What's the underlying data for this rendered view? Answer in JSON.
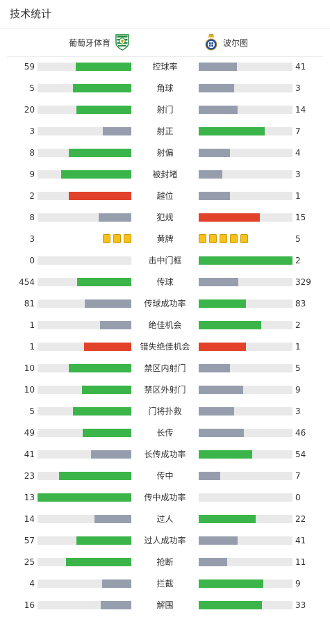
{
  "header": {
    "title": "技术统计"
  },
  "teams": {
    "home": {
      "name": "葡萄牙体育",
      "logo_icon": "sporting-cp-crest-icon"
    },
    "away": {
      "name": "波尔图",
      "logo_icon": "fc-porto-crest-icon"
    }
  },
  "colors": {
    "leader": "#3bb54a",
    "trailer": "#969eae",
    "negative": "#e2412a",
    "track": "#e9e9e9",
    "yellow_card": "#f6c21b"
  },
  "stats": [
    {
      "label": "控球率",
      "home": "59",
      "away": "41",
      "hf": 0.59,
      "af": 0.41,
      "hc": "leader",
      "ac": "trailer"
    },
    {
      "label": "角球",
      "home": "5",
      "away": "3",
      "hf": 0.625,
      "af": 0.375,
      "hc": "leader",
      "ac": "trailer"
    },
    {
      "label": "射门",
      "home": "20",
      "away": "14",
      "hf": 0.588,
      "af": 0.412,
      "hc": "leader",
      "ac": "trailer"
    },
    {
      "label": "射正",
      "home": "3",
      "away": "7",
      "hf": 0.3,
      "af": 0.7,
      "hc": "trailer",
      "ac": "leader"
    },
    {
      "label": "射偏",
      "home": "8",
      "away": "4",
      "hf": 0.667,
      "af": 0.333,
      "hc": "leader",
      "ac": "trailer"
    },
    {
      "label": "被封堵",
      "home": "9",
      "away": "3",
      "hf": 0.75,
      "af": 0.25,
      "hc": "leader",
      "ac": "trailer"
    },
    {
      "label": "越位",
      "home": "2",
      "away": "1",
      "hf": 0.667,
      "af": 0.333,
      "hc": "negative",
      "ac": "trailer"
    },
    {
      "label": "犯规",
      "home": "8",
      "away": "15",
      "hf": 0.348,
      "af": 0.652,
      "hc": "trailer",
      "ac": "negative"
    },
    {
      "label": "黄牌",
      "home": "3",
      "away": "5",
      "type": "cards",
      "home_cards": 3,
      "away_cards": 5
    },
    {
      "label": "击中门框",
      "home": "0",
      "away": "2",
      "hf": 0,
      "af": 1,
      "hc": "trailer",
      "ac": "leader"
    },
    {
      "label": "传球",
      "home": "454",
      "away": "329",
      "hf": 0.58,
      "af": 0.42,
      "hc": "leader",
      "ac": "trailer"
    },
    {
      "label": "传球成功率",
      "home": "81",
      "away": "83",
      "hf": 0.494,
      "af": 0.506,
      "hc": "trailer",
      "ac": "leader"
    },
    {
      "label": "绝佳机会",
      "home": "1",
      "away": "2",
      "hf": 0.333,
      "af": 0.667,
      "hc": "trailer",
      "ac": "leader"
    },
    {
      "label": "错失绝佳机会",
      "home": "1",
      "away": "1",
      "hf": 0.5,
      "af": 0.5,
      "hc": "negative",
      "ac": "negative"
    },
    {
      "label": "禁区内射门",
      "home": "10",
      "away": "5",
      "hf": 0.667,
      "af": 0.333,
      "hc": "leader",
      "ac": "trailer"
    },
    {
      "label": "禁区外射门",
      "home": "10",
      "away": "9",
      "hf": 0.526,
      "af": 0.474,
      "hc": "leader",
      "ac": "trailer"
    },
    {
      "label": "门将扑救",
      "home": "5",
      "away": "3",
      "hf": 0.625,
      "af": 0.375,
      "hc": "leader",
      "ac": "trailer"
    },
    {
      "label": "长传",
      "home": "49",
      "away": "46",
      "hf": 0.516,
      "af": 0.484,
      "hc": "leader",
      "ac": "trailer"
    },
    {
      "label": "长传成功率",
      "home": "41",
      "away": "54",
      "hf": 0.432,
      "af": 0.568,
      "hc": "trailer",
      "ac": "leader"
    },
    {
      "label": "传中",
      "home": "23",
      "away": "7",
      "hf": 0.767,
      "af": 0.233,
      "hc": "leader",
      "ac": "trailer"
    },
    {
      "label": "传中成功率",
      "home": "13",
      "away": "0",
      "hf": 1,
      "af": 0,
      "hc": "leader",
      "ac": "trailer"
    },
    {
      "label": "过人",
      "home": "14",
      "away": "22",
      "hf": 0.389,
      "af": 0.611,
      "hc": "trailer",
      "ac": "leader"
    },
    {
      "label": "过人成功率",
      "home": "57",
      "away": "41",
      "hf": 0.582,
      "af": 0.418,
      "hc": "leader",
      "ac": "trailer"
    },
    {
      "label": "抢断",
      "home": "25",
      "away": "11",
      "hf": 0.694,
      "af": 0.306,
      "hc": "leader",
      "ac": "trailer"
    },
    {
      "label": "拦截",
      "home": "4",
      "away": "9",
      "hf": 0.308,
      "af": 0.692,
      "hc": "trailer",
      "ac": "leader"
    },
    {
      "label": "解围",
      "home": "16",
      "away": "33",
      "hf": 0.327,
      "af": 0.673,
      "hc": "trailer",
      "ac": "leader"
    }
  ]
}
